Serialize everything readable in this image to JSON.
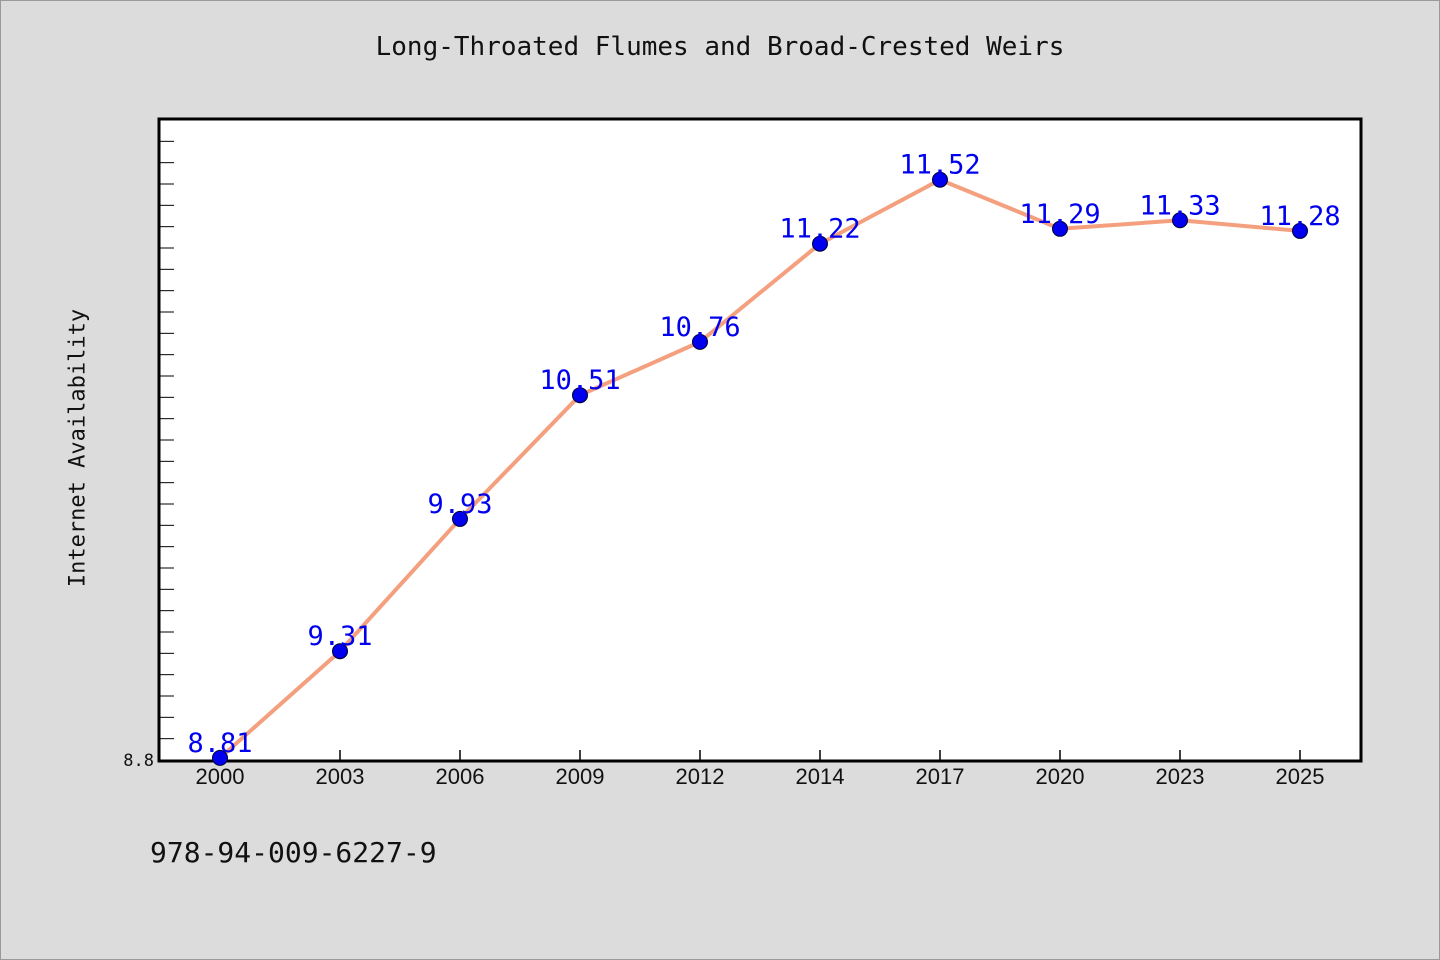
{
  "chart_data": {
    "type": "line",
    "title": "Long-Throated Flumes and Broad-Crested Weirs",
    "xlabel": "",
    "ylabel": "Internet Availability",
    "categories": [
      "2000",
      "2003",
      "2006",
      "2009",
      "2012",
      "2014",
      "2017",
      "2020",
      "2023",
      "2025"
    ],
    "values": [
      8.81,
      9.31,
      9.93,
      10.51,
      10.76,
      11.22,
      11.52,
      11.29,
      11.33,
      11.28
    ],
    "data_labels": [
      "8.81",
      "9.31",
      "9.93",
      "10.51",
      "10.76",
      "11.22",
      "11.52",
      "11.29",
      "11.33",
      "11.28"
    ],
    "ylim": [
      8.8,
      11.8
    ],
    "y_tick_labels": [
      "8.8"
    ],
    "grid": false,
    "line_color": "#f4a07f",
    "marker_color": "#0000ee",
    "label_color": "#0000ee"
  },
  "footer": {
    "isbn": "978-94-009-6227-9"
  }
}
